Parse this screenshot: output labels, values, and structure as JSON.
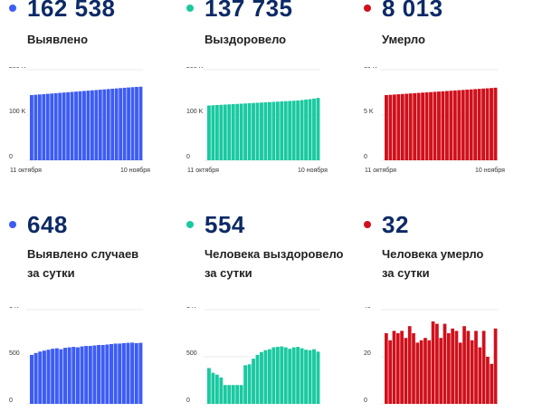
{
  "panels": [
    {
      "value": "162 538",
      "label_lines": [
        "Выявлено"
      ],
      "color": "#3d5cf5"
    },
    {
      "value": "137 735",
      "label_lines": [
        "Выздоровело"
      ],
      "color": "#1ac9a0"
    },
    {
      "value": "8 013",
      "label_lines": [
        "Умерло"
      ],
      "color": "#d0101b"
    },
    {
      "value": "648",
      "label_lines": [
        "Выявлено случаев",
        "за сутки"
      ],
      "color": "#3d5cf5"
    },
    {
      "value": "554",
      "label_lines": [
        "Человека выздоровело",
        "за сутки"
      ],
      "color": "#1ac9a0"
    },
    {
      "value": "32",
      "label_lines": [
        "Человека умерло",
        "за сутки"
      ],
      "color": "#d0101b"
    }
  ],
  "chart_data": [
    {
      "type": "bar",
      "title": "Выявлено",
      "ylim": [
        0,
        200000
      ],
      "yticks": [
        "0",
        "100 K",
        "200 K"
      ],
      "xticks": [
        "11 октября",
        "10 ноября"
      ],
      "color": "#3d5cf5",
      "values": [
        144000,
        144700,
        145400,
        146100,
        146800,
        147500,
        148200,
        148900,
        149600,
        150300,
        151000,
        151700,
        152400,
        153100,
        153800,
        154500,
        155200,
        155900,
        156600,
        157300,
        158000,
        158700,
        159400,
        160100,
        160800,
        161500,
        162000,
        162538
      ]
    },
    {
      "type": "bar",
      "title": "Выздоровело",
      "ylim": [
        0,
        200000
      ],
      "yticks": [
        "0",
        "100 K",
        "200 K"
      ],
      "xticks": [
        "11 октября",
        "10 ноября"
      ],
      "color": "#1ac9a0",
      "values": [
        121000,
        121500,
        122000,
        122500,
        123000,
        123500,
        124000,
        124500,
        125000,
        125500,
        126000,
        126500,
        127000,
        127500,
        128000,
        128500,
        129000,
        129500,
        130000,
        130500,
        131000,
        131500,
        132000,
        133000,
        134000,
        135000,
        136300,
        137735
      ]
    },
    {
      "type": "bar",
      "title": "Умерло",
      "ylim": [
        0,
        10000
      ],
      "yticks": [
        "0",
        "5 K",
        "10 K"
      ],
      "xticks": [
        "11 октября",
        "10 ноября"
      ],
      "color": "#d0101b",
      "values": [
        7200,
        7230,
        7260,
        7290,
        7320,
        7350,
        7380,
        7410,
        7440,
        7470,
        7500,
        7530,
        7560,
        7590,
        7620,
        7650,
        7680,
        7710,
        7740,
        7770,
        7800,
        7830,
        7860,
        7890,
        7920,
        7950,
        7980,
        8013
      ]
    },
    {
      "type": "bar",
      "title": "Выявлено случаев за сутки",
      "ylim": [
        0,
        1000
      ],
      "yticks": [
        "0",
        "500",
        "1 K"
      ],
      "xticks": [],
      "color": "#3d5cf5",
      "values": [
        520,
        540,
        555,
        565,
        575,
        585,
        590,
        580,
        595,
        600,
        605,
        600,
        610,
        615,
        615,
        620,
        625,
        625,
        630,
        635,
        640,
        640,
        645,
        648,
        650,
        645,
        648
      ]
    },
    {
      "type": "bar",
      "title": "Человека выздоровело за сутки",
      "ylim": [
        0,
        1000
      ],
      "yticks": [
        "0",
        "500",
        "1 K"
      ],
      "xticks": [],
      "color": "#1ac9a0",
      "values": [
        380,
        330,
        310,
        280,
        200,
        200,
        200,
        200,
        200,
        410,
        420,
        480,
        520,
        550,
        570,
        580,
        600,
        605,
        610,
        600,
        585,
        600,
        605,
        590,
        575,
        570,
        580,
        554
      ]
    },
    {
      "type": "bar",
      "title": "Человека умерло за сутки",
      "ylim": [
        0,
        40
      ],
      "yticks": [
        "0",
        "20",
        "40"
      ],
      "xticks": [],
      "color": "#d0101b",
      "values": [
        30,
        27,
        31,
        30,
        31,
        28,
        33,
        30,
        26,
        27,
        28,
        27,
        35,
        34,
        28,
        34,
        30,
        32,
        31,
        26,
        33,
        31,
        27,
        31,
        24,
        31,
        20,
        17,
        32
      ]
    }
  ]
}
